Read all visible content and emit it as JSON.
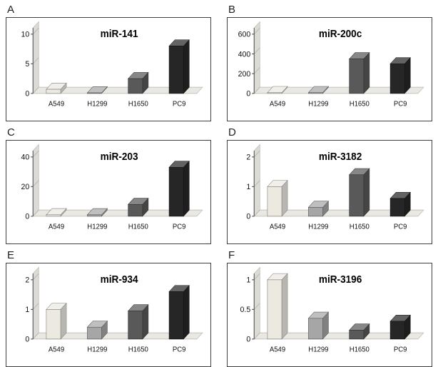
{
  "figure": {
    "description": "Six 3D bar charts of miRNA expression in four lung cancer cell lines",
    "categories": [
      "A549",
      "H1299",
      "H1650",
      "PC9"
    ]
  },
  "colors": {
    "bars": [
      "#ece9e1",
      "#a6a6a6",
      "#595959",
      "#262626"
    ],
    "wall": "#dcdad4",
    "floor": "#eae8e2",
    "gridline": "#b7b5af",
    "axis": "#4a4a4a",
    "text": "#111111",
    "box_border": "#3f3f3f"
  },
  "chart_data": [
    {
      "type": "bar",
      "panel": "A",
      "title": "miR-141",
      "categories": [
        "A549",
        "H1299",
        "H1650",
        "PC9"
      ],
      "values": [
        0.7,
        0.1,
        2.5,
        8.0
      ],
      "xlabel": "",
      "ylabel": "",
      "ylim": [
        0,
        10
      ],
      "yticks": [
        0,
        5,
        10
      ],
      "grid": true,
      "legend": "none"
    },
    {
      "type": "bar",
      "panel": "B",
      "title": "miR-200c",
      "categories": [
        "A549",
        "H1299",
        "H1650",
        "PC9"
      ],
      "values": [
        8,
        8,
        350,
        300
      ],
      "xlabel": "",
      "ylabel": "",
      "ylim": [
        0,
        600
      ],
      "yticks": [
        0,
        200,
        400,
        600
      ],
      "grid": true,
      "legend": "none"
    },
    {
      "type": "bar",
      "panel": "C",
      "title": "miR-203",
      "categories": [
        "A549",
        "H1299",
        "H1650",
        "PC9"
      ],
      "values": [
        1,
        1,
        8,
        33
      ],
      "xlabel": "",
      "ylabel": "",
      "ylim": [
        0,
        40
      ],
      "yticks": [
        0,
        20,
        40
      ],
      "grid": true,
      "legend": "none"
    },
    {
      "type": "bar",
      "panel": "D",
      "title": "miR-3182",
      "categories": [
        "A549",
        "H1299",
        "H1650",
        "PC9"
      ],
      "values": [
        1.0,
        0.3,
        1.4,
        0.6
      ],
      "xlabel": "",
      "ylabel": "",
      "ylim": [
        0,
        2
      ],
      "yticks": [
        0,
        1,
        2
      ],
      "grid": true,
      "legend": "none"
    },
    {
      "type": "bar",
      "panel": "E",
      "title": "miR-934",
      "categories": [
        "A549",
        "H1299",
        "H1650",
        "PC9"
      ],
      "values": [
        1.0,
        0.4,
        0.95,
        1.6
      ],
      "xlabel": "",
      "ylabel": "",
      "ylim": [
        0,
        2
      ],
      "yticks": [
        0,
        1,
        2
      ],
      "grid": true,
      "legend": "none"
    },
    {
      "type": "bar",
      "panel": "F",
      "title": "miR-3196",
      "categories": [
        "A549",
        "H1299",
        "H1650",
        "PC9"
      ],
      "values": [
        1.0,
        0.35,
        0.15,
        0.3
      ],
      "xlabel": "",
      "ylabel": "",
      "ylim": [
        0,
        1
      ],
      "yticks": [
        0,
        0.5,
        1
      ],
      "grid": true,
      "legend": "none"
    }
  ]
}
